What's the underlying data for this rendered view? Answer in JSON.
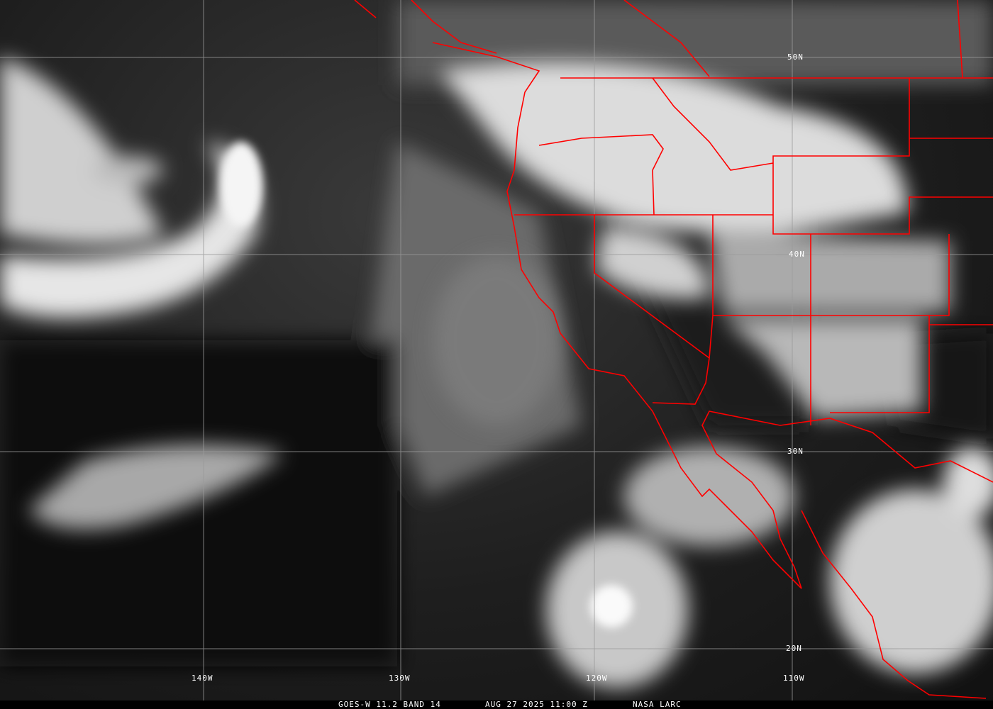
{
  "caption": {
    "satellite": "GOES-W 11.2 BAND 14",
    "datetime": "AUG 27 2025 11:00 Z",
    "source": "NASA LARC"
  },
  "grid": {
    "latitudes": [
      "50N",
      "40N",
      "30N",
      "20N"
    ],
    "longitudes": [
      "140W",
      "130W",
      "120W",
      "110W"
    ]
  },
  "colors": {
    "borders": "#ff0000",
    "gridlines": "#9a9a9a",
    "labels": "#ffffff"
  }
}
